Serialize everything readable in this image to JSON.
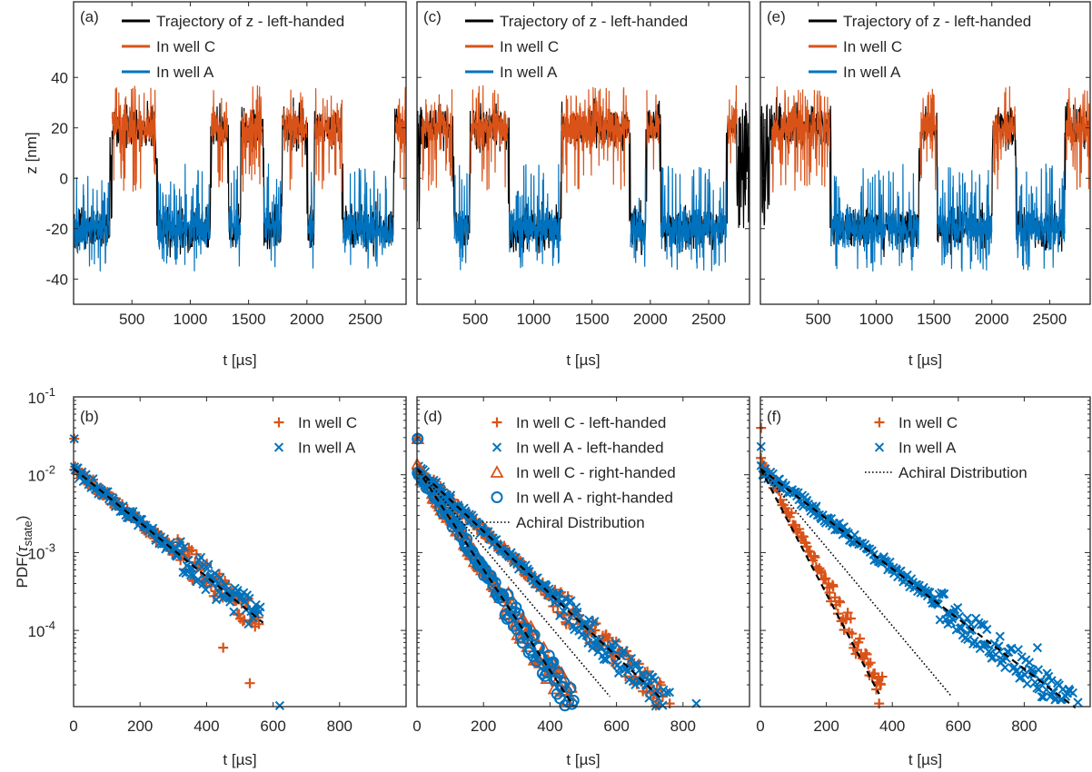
{
  "colors": {
    "black": "#000000",
    "orange": "#D95319",
    "blue": "#0072BD",
    "axis": "#262626"
  },
  "chart_data": [
    {
      "panel": "(a)",
      "type": "line",
      "xlabel": "t [µs]",
      "ylabel": "z [nm]",
      "xlim": [
        0,
        2850
      ],
      "ylim": [
        -50,
        70
      ],
      "xticks": [
        500,
        1000,
        1500,
        2000,
        2500
      ],
      "xticklabels": [
        "500",
        "1000",
        "1500",
        "2000",
        "2500"
      ],
      "yticks": [
        -40,
        -20,
        0,
        20,
        40
      ],
      "yticklabels": [
        "-40",
        "-20",
        "0",
        "20",
        "40"
      ],
      "legend": [
        "Trajectory of z - left-handed",
        "In well C",
        "In well A"
      ],
      "legend_position": "top-left",
      "segments": [
        {
          "well": "A",
          "x0": 0,
          "x1": 310
        },
        {
          "well": "C",
          "x0": 330,
          "x1": 700
        },
        {
          "well": "A",
          "x0": 720,
          "x1": 1170
        },
        {
          "well": "C",
          "x0": 1180,
          "x1": 1320
        },
        {
          "well": "A",
          "x0": 1330,
          "x1": 1430
        },
        {
          "well": "C",
          "x0": 1440,
          "x1": 1620
        },
        {
          "well": "A",
          "x0": 1630,
          "x1": 1780
        },
        {
          "well": "C",
          "x0": 1790,
          "x1": 2000
        },
        {
          "well": "A",
          "x0": 2010,
          "x1": 2060
        },
        {
          "well": "C",
          "x0": 2070,
          "x1": 2300
        },
        {
          "well": "A",
          "x0": 2310,
          "x1": 2740
        },
        {
          "well": "C",
          "x0": 2760,
          "x1": 2850
        }
      ]
    },
    {
      "panel": "(c)",
      "type": "line",
      "xlabel": "t [µs]",
      "ylabel": "",
      "xlim": [
        0,
        2850
      ],
      "ylim": [
        -50,
        70
      ],
      "xticks": [
        500,
        1000,
        1500,
        2000,
        2500
      ],
      "xticklabels": [
        "500",
        "1000",
        "1500",
        "2000",
        "2500"
      ],
      "yticks": [
        -40,
        -20,
        0,
        20,
        40
      ],
      "yticklabels": [],
      "legend": [
        "Trajectory of z - left-handed",
        "In well C",
        "In well A"
      ],
      "legend_position": "top-left",
      "segments": [
        {
          "well": "C",
          "x0": 40,
          "x1": 300
        },
        {
          "well": "A",
          "x0": 320,
          "x1": 450
        },
        {
          "well": "C",
          "x0": 460,
          "x1": 780
        },
        {
          "well": "A",
          "x0": 790,
          "x1": 1230
        },
        {
          "well": "C",
          "x0": 1240,
          "x1": 1820
        },
        {
          "well": "A",
          "x0": 1830,
          "x1": 1960
        },
        {
          "well": "C",
          "x0": 1970,
          "x1": 2080
        },
        {
          "well": "A",
          "x0": 2090,
          "x1": 2650
        },
        {
          "well": "C",
          "x0": 2660,
          "x1": 2740
        }
      ]
    },
    {
      "panel": "(e)",
      "type": "line",
      "xlabel": "t [µs]",
      "ylabel": "",
      "xlim": [
        0,
        2850
      ],
      "ylim": [
        -50,
        70
      ],
      "xticks": [
        500,
        1000,
        1500,
        2000,
        2500
      ],
      "xticklabels": [
        "500",
        "1000",
        "1500",
        "2000",
        "2500"
      ],
      "yticks": [
        -40,
        -20,
        0,
        20,
        40
      ],
      "yticklabels": [],
      "legend": [
        "Trajectory of z - left-handed",
        "In well C",
        "In well A"
      ],
      "legend_position": "top-left",
      "segments": [
        {
          "well": "C",
          "x0": 100,
          "x1": 600
        },
        {
          "well": "A",
          "x0": 610,
          "x1": 1370
        },
        {
          "well": "C",
          "x0": 1380,
          "x1": 1520
        },
        {
          "well": "A",
          "x0": 1530,
          "x1": 2000
        },
        {
          "well": "C",
          "x0": 2010,
          "x1": 2200
        },
        {
          "well": "A",
          "x0": 2210,
          "x1": 2630
        },
        {
          "well": "C",
          "x0": 2640,
          "x1": 2850
        }
      ]
    },
    {
      "panel": "(b)",
      "type": "scatter",
      "xlabel": "t [µs]",
      "ylabel": "PDF(τ_state)",
      "yscale": "log",
      "xlim": [
        0,
        1000
      ],
      "ylim": [
        1.05e-05,
        0.1
      ],
      "xticks": [
        0,
        200,
        400,
        600,
        800
      ],
      "xticklabels": [
        "0",
        "200",
        "400",
        "600",
        "800"
      ],
      "yticks": [
        0.0001,
        0.001,
        0.01,
        0.1
      ],
      "legend_position": "top-right",
      "series": [
        {
          "name": "In well C",
          "marker": "plus",
          "color": "#D95319",
          "first": 0.029,
          "start": 0.012,
          "tau": 125,
          "xmax": 560,
          "outliers": [
            [
              530,
              2.1e-05
            ],
            [
              450,
              6e-05
            ]
          ]
        },
        {
          "name": "In well A",
          "marker": "cross",
          "color": "#0072BD",
          "first": 0.029,
          "start": 0.012,
          "tau": 125,
          "xmax": 565,
          "outliers": [
            [
              620,
              1.08e-05
            ]
          ]
        }
      ],
      "lines": [
        {
          "style": "dashed",
          "start": 0.012,
          "tau": 125,
          "xmax": 570
        }
      ]
    },
    {
      "panel": "(d)",
      "type": "scatter",
      "xlabel": "t [µs]",
      "ylabel": "",
      "yscale": "log",
      "xlim": [
        0,
        1000
      ],
      "ylim": [
        1.05e-05,
        0.1
      ],
      "xticks": [
        0,
        200,
        400,
        600,
        800
      ],
      "xticklabels": [
        "0",
        "200",
        "400",
        "600",
        "800"
      ],
      "yticks": [
        0.0001,
        0.001,
        0.01,
        0.1
      ],
      "legend_position": "top-right",
      "series": [
        {
          "name": "In well C - left-handed",
          "marker": "plus",
          "color": "#D95319",
          "first": 0.029,
          "start": 0.012,
          "tau": 108,
          "xmax": 740,
          "outliers": [
            [
              760,
              1.15e-05
            ]
          ]
        },
        {
          "name": "In well A - left-handed",
          "marker": "cross",
          "color": "#0072BD",
          "first": 0.029,
          "start": 0.012,
          "tau": 108,
          "xmax": 760,
          "outliers": [
            [
              840,
              1.15e-05
            ],
            [
              700,
              2.7e-05
            ]
          ]
        },
        {
          "name": "In well C - right-handed",
          "marker": "triangle",
          "color": "#D95319",
          "first": 0.029,
          "start": 0.012,
          "tau": 67,
          "xmax": 470,
          "outliers": []
        },
        {
          "name": "In well A - right-handed",
          "marker": "circle",
          "color": "#0072BD",
          "first": 0.029,
          "start": 0.012,
          "tau": 67,
          "xmax": 480,
          "outliers": []
        }
      ],
      "lines": [
        {
          "style": "dashed",
          "start": 0.012,
          "tau": 108,
          "xmax": 730
        },
        {
          "style": "dashed",
          "start": 0.012,
          "tau": 67,
          "xmax": 470
        },
        {
          "style": "dotted",
          "start": 0.012,
          "tau": 86,
          "xmax": 580,
          "legend": "Achiral Distribution"
        }
      ]
    },
    {
      "panel": "(f)",
      "type": "scatter",
      "xlabel": "t [µs]",
      "ylabel": "",
      "yscale": "log",
      "xlim": [
        0,
        1000
      ],
      "ylim": [
        1.05e-05,
        0.1
      ],
      "xticks": [
        0,
        200,
        400,
        600,
        800
      ],
      "xticklabels": [
        "0",
        "200",
        "400",
        "600",
        "800"
      ],
      "yticks": [
        0.0001,
        0.001,
        0.01,
        0.1
      ],
      "legend_position": "top-right",
      "series": [
        {
          "name": "In well C",
          "marker": "plus",
          "color": "#D95319",
          "first": 0.04,
          "start": 0.016,
          "tau": 54,
          "xmax": 370,
          "outliers": [
            [
              360,
              1.15e-05
            ]
          ]
        },
        {
          "name": "In well A",
          "marker": "cross",
          "color": "#0072BD",
          "first": 0.023,
          "start": 0.012,
          "tau": 135,
          "xmax": 980,
          "outliers": [
            [
              840,
              6e-05
            ]
          ]
        }
      ],
      "lines": [
        {
          "style": "dashed",
          "start": 0.012,
          "tau": 54,
          "xmax": 360
        },
        {
          "style": "dashed",
          "start": 0.012,
          "tau": 135,
          "xmax": 980
        },
        {
          "style": "dotted",
          "start": 0.012,
          "tau": 86,
          "xmax": 580,
          "legend": "Achiral Distribution"
        }
      ]
    }
  ]
}
